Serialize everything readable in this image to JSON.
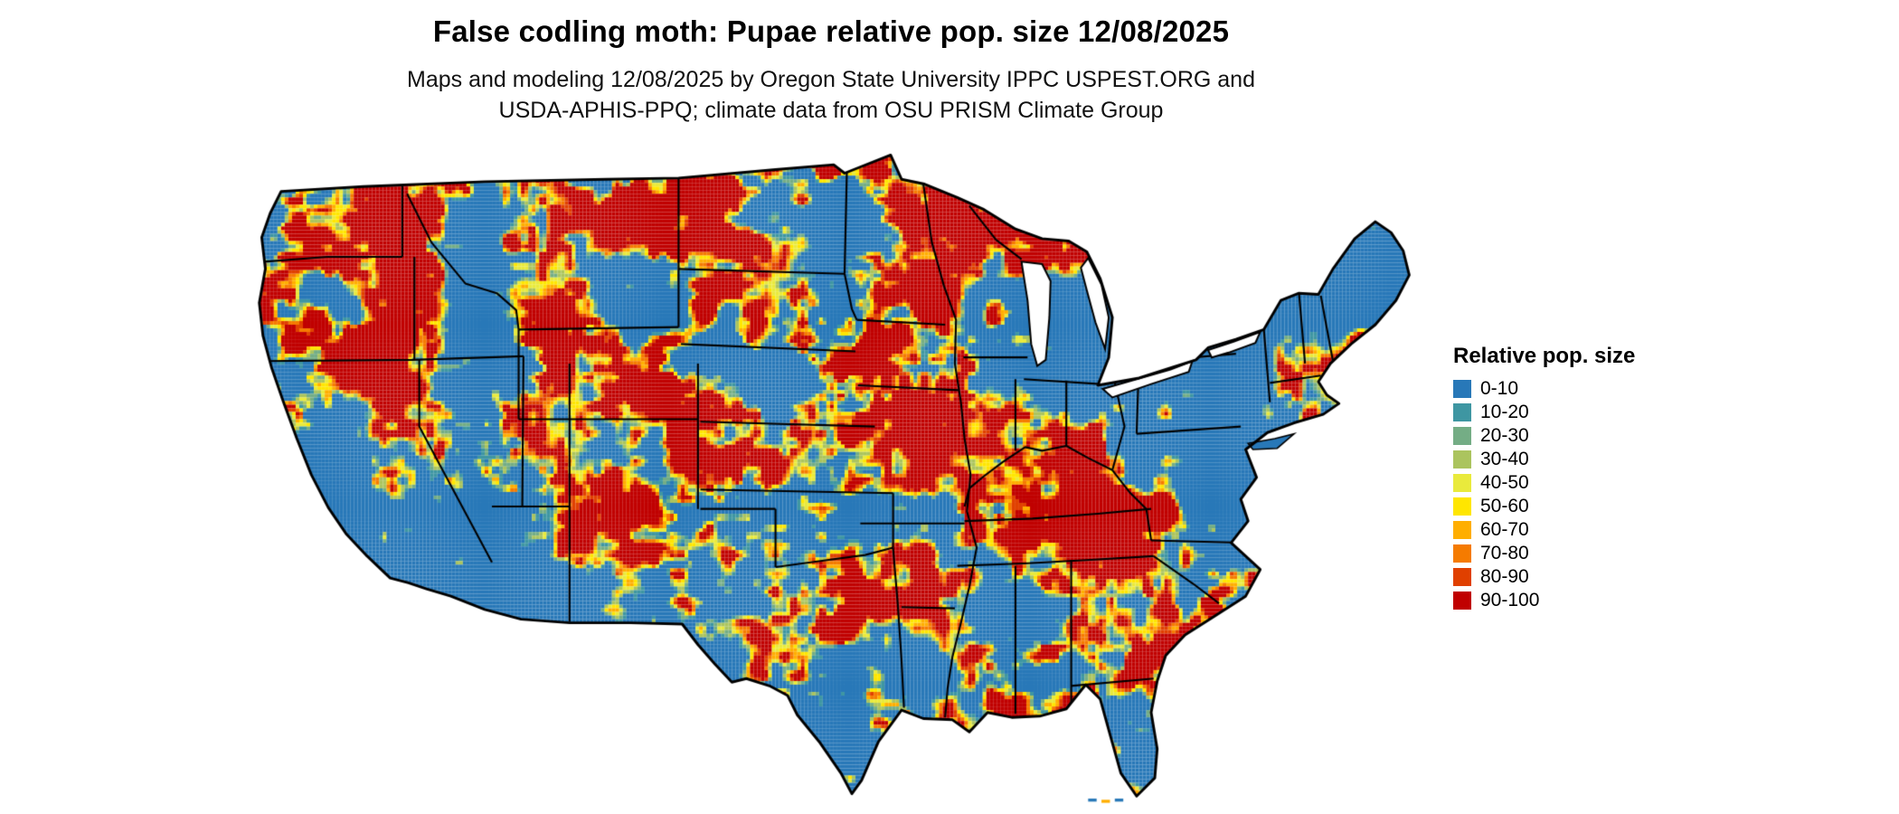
{
  "header": {
    "title": "False codling moth: Pupae relative pop. size 12/08/2025",
    "subtitle_line1": "Maps and modeling 12/08/2025 by Oregon State University IPPC USPEST.ORG and",
    "subtitle_line2": "USDA-APHIS-PPQ; climate data from OSU PRISM Climate Group"
  },
  "map": {
    "region": "Contiguous United States",
    "outline_color": "#000000",
    "water_background": "#ffffff"
  },
  "legend": {
    "title": "Relative pop. size",
    "items": [
      {
        "label": "0-10",
        "color": "#2878b8"
      },
      {
        "label": "10-20",
        "color": "#3e96a2"
      },
      {
        "label": "20-30",
        "color": "#74ad85"
      },
      {
        "label": "30-40",
        "color": "#abc45e"
      },
      {
        "label": "40-50",
        "color": "#e9ea3c"
      },
      {
        "label": "50-60",
        "color": "#ffe600"
      },
      {
        "label": "60-70",
        "color": "#ffae00"
      },
      {
        "label": "70-80",
        "color": "#f57b00"
      },
      {
        "label": "80-90",
        "color": "#e04000"
      },
      {
        "label": "90-100",
        "color": "#c00000"
      }
    ]
  }
}
